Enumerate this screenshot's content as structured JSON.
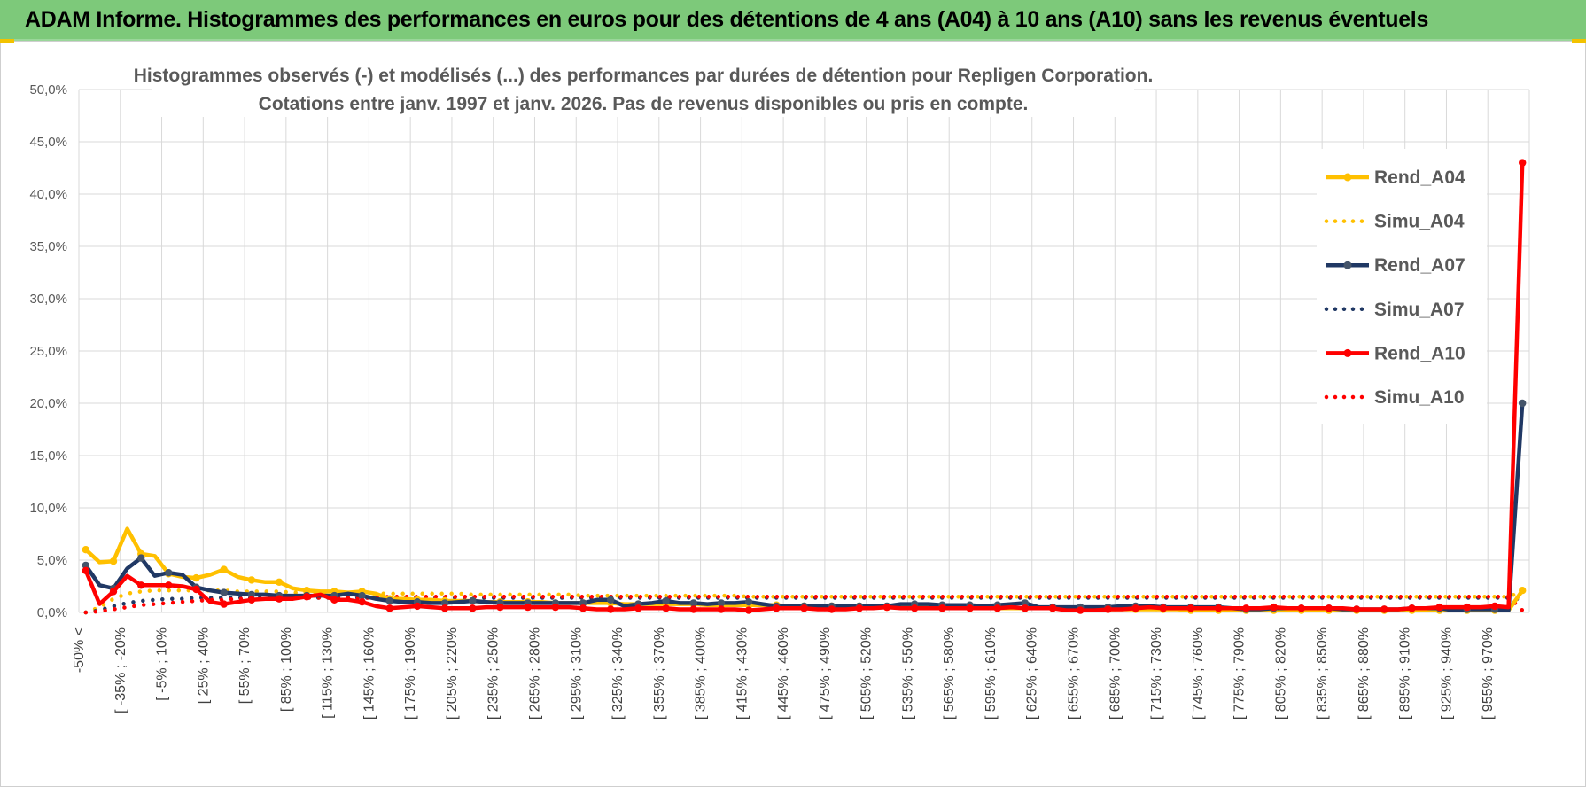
{
  "header": {
    "title": "ADAM Informe. Histogrammes des performances en euros pour des détentions de 4 ans (A04) à 10 ans (A10) sans les revenus éventuels"
  },
  "chart_data": {
    "type": "line",
    "title_lines": [
      "Histogrammes observés (-) et modélisés (...) des performances par durées de détention pour Repligen Corporation.",
      "Cotations entre janv. 1997 et janv. 2026. Pas de revenus disponibles ou pris en compte."
    ],
    "ylim": [
      0,
      0.5
    ],
    "yticks": [
      "0,0%",
      "5,0%",
      "10,0%",
      "15,0%",
      "20,0%",
      "25,0%",
      "30,0%",
      "35,0%",
      "40,0%",
      "45,0%",
      "50,0%"
    ],
    "grid": true,
    "legend_position": "right",
    "x_tick_labels": [
      "-50% <",
      "[ -35% ; -20%",
      "[ -5% ; 10%",
      "[ 25% ; 40%",
      "[ 55% ; 70%",
      "[ 85% ; 100%",
      "[ 115% ; 130%",
      "[ 145% ; 160%",
      "[ 175% ; 190%",
      "[ 205% ; 220%",
      "[ 235% ; 250%",
      "[ 265% ; 280%",
      "[ 295% ; 310%",
      "[ 325% ; 340%",
      "[ 355% ; 370%",
      "[ 385% ; 400%",
      "[ 415% ; 430%",
      "[ 445% ; 460%",
      "[ 475% ; 490%",
      "[ 505% ; 520%",
      "[ 535% ; 550%",
      "[ 565% ; 580%",
      "[ 595% ; 610%",
      "[ 625% ; 640%",
      "[ 655% ; 670%",
      "[ 685% ; 700%",
      "[ 715% ; 730%",
      "[ 745% ; 760%",
      "[ 775% ; 790%",
      "[ 805% ; 820%",
      "[ 835% ; 850%",
      "[ 865% ; 880%",
      "[ 895% ; 910%",
      "[ 925% ; 940%",
      "[ 955% ; 970%"
    ],
    "series": [
      {
        "name": "Rend_A04",
        "style": "solid",
        "color": "#ffc000",
        "values": [
          0.06,
          0.048,
          0.049,
          0.08,
          0.056,
          0.054,
          0.037,
          0.034,
          0.033,
          0.036,
          0.041,
          0.034,
          0.031,
          0.029,
          0.029,
          0.023,
          0.021,
          0.02,
          0.02,
          0.019,
          0.02,
          0.018,
          0.013,
          0.013,
          0.012,
          0.012,
          0.011,
          0.011,
          0.011,
          0.01,
          0.01,
          0.01,
          0.01,
          0.01,
          0.009,
          0.009,
          0.009,
          0.009,
          0.009,
          0.008,
          0.008,
          0.008,
          0.008,
          0.008,
          0.008,
          0.007,
          0.007,
          0.007,
          0.007,
          0.007,
          0.007,
          0.006,
          0.006,
          0.006,
          0.006,
          0.006,
          0.006,
          0.005,
          0.005,
          0.005,
          0.005,
          0.005,
          0.005,
          0.005,
          0.004,
          0.004,
          0.004,
          0.004,
          0.004,
          0.004,
          0.004,
          0.003,
          0.003,
          0.003,
          0.003,
          0.003,
          0.003,
          0.003,
          0.003,
          0.003,
          0.002,
          0.002,
          0.002,
          0.002,
          0.002,
          0.002,
          0.002,
          0.002,
          0.002,
          0.002,
          0.002,
          0.002,
          0.002,
          0.002,
          0.002,
          0.002,
          0.002,
          0.002,
          0.002,
          0.002,
          0.002,
          0.002,
          0.002,
          0.002,
          0.021
        ]
      },
      {
        "name": "Simu_A04",
        "style": "dotted",
        "color": "#ffc000",
        "values": [
          0.0,
          0.005,
          0.013,
          0.018,
          0.02,
          0.021,
          0.021,
          0.021,
          0.021,
          0.021,
          0.021,
          0.02,
          0.02,
          0.02,
          0.02,
          0.019,
          0.019,
          0.019,
          0.019,
          0.019,
          0.019,
          0.018,
          0.018,
          0.018,
          0.018,
          0.018,
          0.018,
          0.018,
          0.017,
          0.017,
          0.017,
          0.017,
          0.017,
          0.017,
          0.017,
          0.017,
          0.016,
          0.016,
          0.016,
          0.016,
          0.016,
          0.016,
          0.016,
          0.016,
          0.016,
          0.016,
          0.016,
          0.016,
          0.015,
          0.015,
          0.015,
          0.015,
          0.015,
          0.015,
          0.015,
          0.015,
          0.015,
          0.015,
          0.015,
          0.015,
          0.015,
          0.015,
          0.015,
          0.015,
          0.015,
          0.015,
          0.015,
          0.015,
          0.015,
          0.015,
          0.015,
          0.015,
          0.015,
          0.015,
          0.015,
          0.015,
          0.015,
          0.015,
          0.015,
          0.015,
          0.015,
          0.015,
          0.015,
          0.015,
          0.015,
          0.015,
          0.015,
          0.015,
          0.015,
          0.015,
          0.015,
          0.015,
          0.015,
          0.015,
          0.015,
          0.015,
          0.015,
          0.015,
          0.015,
          0.015,
          0.015,
          0.015,
          0.015,
          0.015,
          0.02
        ]
      },
      {
        "name": "Rend_A07",
        "style": "solid",
        "color": "#203864",
        "values": [
          0.045,
          0.026,
          0.023,
          0.042,
          0.052,
          0.035,
          0.038,
          0.036,
          0.024,
          0.021,
          0.019,
          0.018,
          0.017,
          0.017,
          0.016,
          0.016,
          0.016,
          0.016,
          0.016,
          0.018,
          0.016,
          0.013,
          0.011,
          0.01,
          0.01,
          0.009,
          0.009,
          0.01,
          0.011,
          0.01,
          0.009,
          0.009,
          0.009,
          0.009,
          0.009,
          0.009,
          0.009,
          0.012,
          0.012,
          0.006,
          0.008,
          0.009,
          0.011,
          0.009,
          0.009,
          0.008,
          0.009,
          0.009,
          0.01,
          0.008,
          0.006,
          0.006,
          0.006,
          0.006,
          0.006,
          0.006,
          0.006,
          0.006,
          0.006,
          0.008,
          0.008,
          0.008,
          0.007,
          0.007,
          0.007,
          0.006,
          0.007,
          0.008,
          0.009,
          0.005,
          0.005,
          0.005,
          0.005,
          0.005,
          0.005,
          0.006,
          0.006,
          0.006,
          0.005,
          0.005,
          0.005,
          0.005,
          0.005,
          0.004,
          0.003,
          0.003,
          0.004,
          0.004,
          0.004,
          0.004,
          0.004,
          0.003,
          0.003,
          0.003,
          0.003,
          0.003,
          0.004,
          0.004,
          0.004,
          0.002,
          0.003,
          0.003,
          0.003,
          0.002,
          0.2
        ]
      },
      {
        "name": "Simu_A07",
        "style": "dotted",
        "color": "#203864",
        "values": [
          0.0,
          0.002,
          0.006,
          0.009,
          0.011,
          0.012,
          0.013,
          0.013,
          0.014,
          0.014,
          0.014,
          0.014,
          0.014,
          0.014,
          0.014,
          0.014,
          0.014,
          0.014,
          0.014,
          0.014,
          0.014,
          0.014,
          0.014,
          0.014,
          0.014,
          0.014,
          0.014,
          0.014,
          0.014,
          0.014,
          0.014,
          0.014,
          0.014,
          0.014,
          0.014,
          0.014,
          0.014,
          0.014,
          0.014,
          0.014,
          0.014,
          0.014,
          0.014,
          0.014,
          0.014,
          0.014,
          0.014,
          0.014,
          0.014,
          0.014,
          0.014,
          0.014,
          0.014,
          0.014,
          0.014,
          0.014,
          0.014,
          0.014,
          0.014,
          0.014,
          0.014,
          0.014,
          0.014,
          0.014,
          0.014,
          0.014,
          0.014,
          0.014,
          0.014,
          0.014,
          0.014,
          0.014,
          0.014,
          0.014,
          0.014,
          0.014,
          0.014,
          0.014,
          0.014,
          0.014,
          0.014,
          0.014,
          0.014,
          0.014,
          0.014,
          0.014,
          0.014,
          0.014,
          0.014,
          0.014,
          0.014,
          0.014,
          0.014,
          0.014,
          0.014,
          0.014,
          0.014,
          0.014,
          0.014,
          0.014,
          0.014,
          0.014,
          0.014,
          0.014,
          0.012
        ]
      },
      {
        "name": "Rend_A10",
        "style": "solid",
        "color": "#ff0000",
        "values": [
          0.04,
          0.008,
          0.02,
          0.035,
          0.026,
          0.026,
          0.026,
          0.025,
          0.022,
          0.01,
          0.008,
          0.01,
          0.012,
          0.013,
          0.013,
          0.013,
          0.015,
          0.017,
          0.012,
          0.012,
          0.01,
          0.006,
          0.004,
          0.005,
          0.006,
          0.005,
          0.004,
          0.004,
          0.004,
          0.005,
          0.005,
          0.005,
          0.005,
          0.005,
          0.005,
          0.005,
          0.004,
          0.003,
          0.003,
          0.003,
          0.004,
          0.004,
          0.004,
          0.003,
          0.003,
          0.003,
          0.003,
          0.003,
          0.002,
          0.003,
          0.004,
          0.004,
          0.004,
          0.003,
          0.003,
          0.003,
          0.004,
          0.004,
          0.005,
          0.004,
          0.004,
          0.004,
          0.004,
          0.004,
          0.004,
          0.004,
          0.004,
          0.005,
          0.004,
          0.004,
          0.004,
          0.002,
          0.002,
          0.002,
          0.003,
          0.003,
          0.004,
          0.005,
          0.004,
          0.004,
          0.004,
          0.004,
          0.004,
          0.004,
          0.004,
          0.004,
          0.005,
          0.004,
          0.004,
          0.004,
          0.004,
          0.004,
          0.003,
          0.003,
          0.003,
          0.003,
          0.004,
          0.004,
          0.005,
          0.005,
          0.005,
          0.005,
          0.006,
          0.005,
          0.43
        ]
      },
      {
        "name": "Simu_A10",
        "style": "dotted",
        "color": "#ff0000",
        "values": [
          0.0,
          0.001,
          0.003,
          0.005,
          0.007,
          0.008,
          0.009,
          0.01,
          0.011,
          0.012,
          0.012,
          0.013,
          0.013,
          0.013,
          0.013,
          0.014,
          0.014,
          0.014,
          0.014,
          0.014,
          0.014,
          0.014,
          0.015,
          0.015,
          0.015,
          0.015,
          0.015,
          0.015,
          0.015,
          0.015,
          0.015,
          0.015,
          0.015,
          0.015,
          0.015,
          0.015,
          0.015,
          0.015,
          0.015,
          0.015,
          0.015,
          0.015,
          0.015,
          0.015,
          0.015,
          0.015,
          0.015,
          0.015,
          0.015,
          0.015,
          0.015,
          0.015,
          0.015,
          0.015,
          0.015,
          0.015,
          0.015,
          0.015,
          0.015,
          0.015,
          0.015,
          0.015,
          0.015,
          0.015,
          0.015,
          0.015,
          0.015,
          0.015,
          0.015,
          0.015,
          0.015,
          0.015,
          0.015,
          0.015,
          0.015,
          0.015,
          0.015,
          0.015,
          0.015,
          0.015,
          0.015,
          0.015,
          0.015,
          0.015,
          0.015,
          0.015,
          0.015,
          0.015,
          0.015,
          0.015,
          0.015,
          0.015,
          0.015,
          0.015,
          0.015,
          0.015,
          0.015,
          0.015,
          0.015,
          0.015,
          0.015,
          0.015,
          0.015,
          0.015,
          0.002
        ]
      }
    ]
  }
}
